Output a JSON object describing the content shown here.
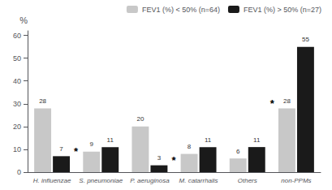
{
  "chart_data": {
    "type": "bar",
    "categories": [
      "H. influenzae",
      "S. pneumoniae",
      "P. aeruginosa",
      "M. catarrhalis",
      "Others",
      "non-PPMs"
    ],
    "series": [
      {
        "name": "FEV1 (%) < 50% (n=64)",
        "color": "#c8c8c8",
        "values": [
          28,
          9,
          20,
          8,
          6,
          28
        ]
      },
      {
        "name": "FEV1 (%) > 50% (n=27)",
        "color": "#1a1a1a",
        "values": [
          7,
          11,
          3,
          11,
          11,
          55
        ]
      }
    ],
    "ylabel": "%",
    "ylim": [
      0,
      62
    ],
    "yticks": [
      0,
      10,
      20,
      30,
      40,
      50,
      60
    ],
    "grid": false,
    "legend": "upper right",
    "data_labels": true,
    "annotations": [
      {
        "text": "*",
        "category": "H. influenzae",
        "series": "FEV1 (%) > 50% (n=27)"
      },
      {
        "text": "*",
        "category": "P. aeruginosa",
        "series": "FEV1 (%) > 50% (n=27)"
      },
      {
        "text": "*",
        "category": "non-PPMs",
        "series": "FEV1 (%) < 50% (n=64)"
      }
    ]
  }
}
